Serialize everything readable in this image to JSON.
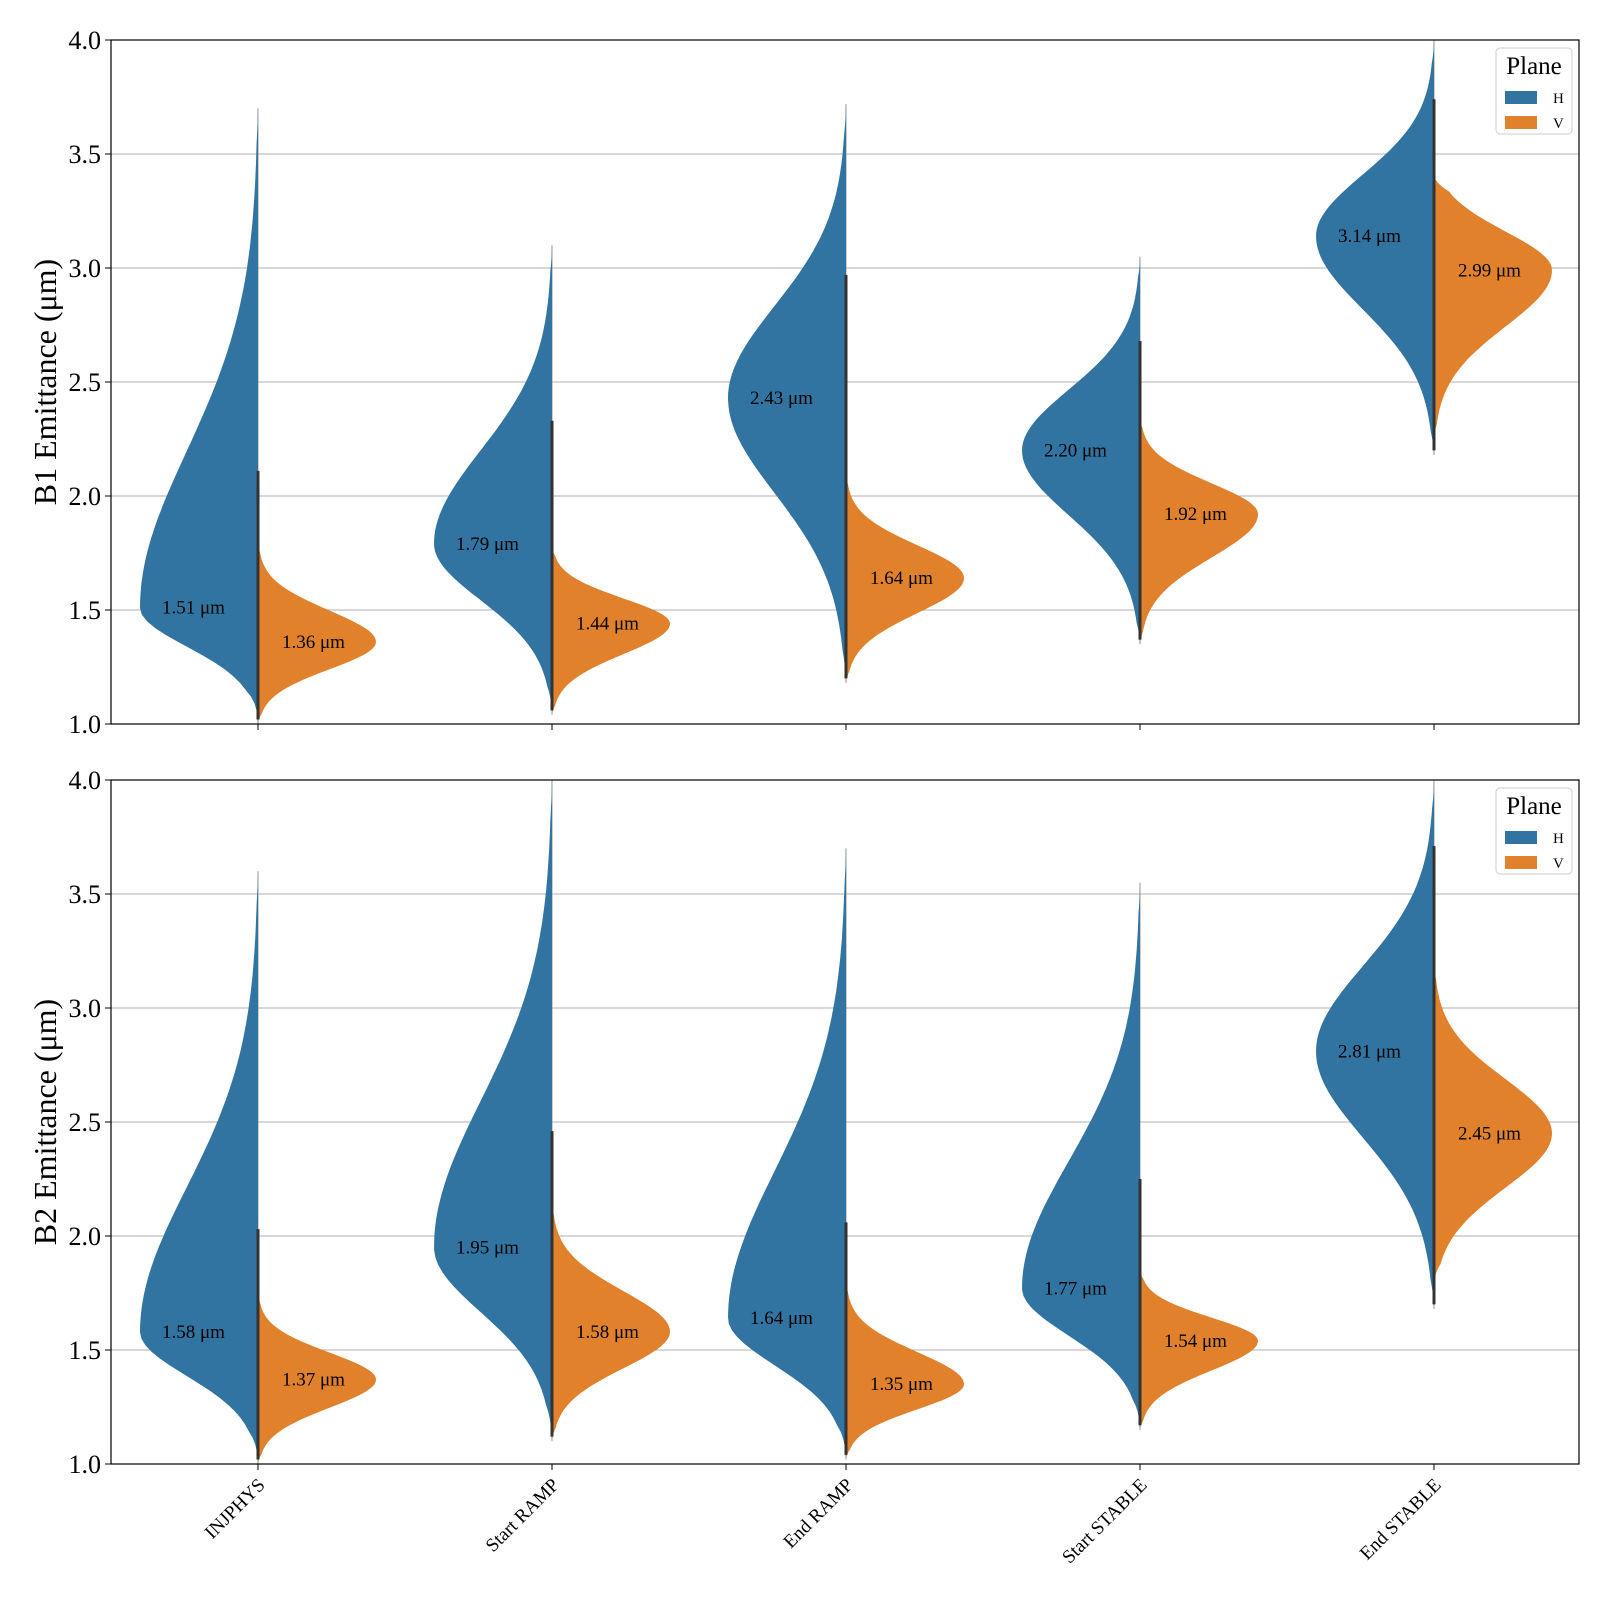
{
  "chart_data": [
    {
      "type": "violin",
      "ylabel": "B1 Emittance (μm)",
      "ylim": [
        1.0,
        4.0
      ],
      "yticks": [
        "1.0",
        "1.5",
        "2.0",
        "2.5",
        "3.0",
        "3.5",
        "4.0"
      ],
      "grid": true,
      "legend": {
        "title": "Plane",
        "position": "top-right",
        "entries": [
          "H",
          "V"
        ]
      },
      "categories": [
        "INJPHYS",
        "Start RAMP",
        "End RAMP",
        "Start STABLE",
        "End STABLE"
      ],
      "unit": "μm",
      "series": [
        {
          "name": "H",
          "color": "#3274a1",
          "medians": [
            1.51,
            1.79,
            2.43,
            2.2,
            3.14
          ],
          "mins": [
            1.0,
            1.05,
            1.18,
            1.35,
            2.18
          ],
          "maxs": [
            3.7,
            3.1,
            3.72,
            3.05,
            4.0
          ],
          "spreads": [
            0.2,
            0.18,
            0.18,
            0.14,
            0.16
          ]
        },
        {
          "name": "V",
          "color": "#e1812c",
          "medians": [
            1.36,
            1.44,
            1.64,
            1.92,
            2.99
          ],
          "mins": [
            1.0,
            1.04,
            1.18,
            1.35,
            2.25
          ],
          "maxs": [
            1.8,
            1.78,
            2.1,
            2.35,
            3.4
          ],
          "spreads": [
            0.13,
            0.13,
            0.14,
            0.16,
            0.2
          ]
        }
      ],
      "median_labels": {
        "H": [
          "1.51 μm",
          "1.79 μm",
          "2.43 μm",
          "2.20 μm",
          "3.14 μm"
        ],
        "V": [
          "1.36 μm",
          "1.44 μm",
          "1.64 μm",
          "1.92 μm",
          "2.99 μm"
        ]
      }
    },
    {
      "type": "violin",
      "ylabel": "B2 Emittance (μm)",
      "ylim": [
        1.0,
        4.0
      ],
      "yticks": [
        "1.0",
        "1.5",
        "2.0",
        "2.5",
        "3.0",
        "3.5",
        "4.0"
      ],
      "grid": true,
      "legend": {
        "title": "Plane",
        "position": "top-right",
        "entries": [
          "H",
          "V"
        ]
      },
      "categories": [
        "INJPHYS",
        "Start RAMP",
        "End RAMP",
        "Start STABLE",
        "End STABLE"
      ],
      "unit": "μm",
      "series": [
        {
          "name": "H",
          "color": "#3274a1",
          "medians": [
            1.58,
            1.95,
            1.64,
            1.77,
            2.81
          ],
          "mins": [
            1.0,
            1.1,
            1.02,
            1.15,
            1.68
          ],
          "maxs": [
            3.6,
            4.0,
            3.7,
            3.55,
            4.0
          ],
          "spreads": [
            0.15,
            0.17,
            0.14,
            0.16,
            0.3
          ]
        },
        {
          "name": "V",
          "color": "#e1812c",
          "medians": [
            1.37,
            1.58,
            1.35,
            1.54,
            2.45
          ],
          "mins": [
            1.0,
            1.1,
            1.02,
            1.15,
            1.8
          ],
          "maxs": [
            1.75,
            2.15,
            1.8,
            1.85,
            3.2
          ],
          "spreads": [
            0.12,
            0.15,
            0.12,
            0.12,
            0.28
          ]
        }
      ],
      "median_labels": {
        "H": [
          "1.58 μm",
          "1.95 μm",
          "1.64 μm",
          "1.77 μm",
          "2.81 μm"
        ],
        "V": [
          "1.37 μm",
          "1.58 μm",
          "1.35 μm",
          "1.54 μm",
          "2.45 μm"
        ]
      }
    }
  ]
}
